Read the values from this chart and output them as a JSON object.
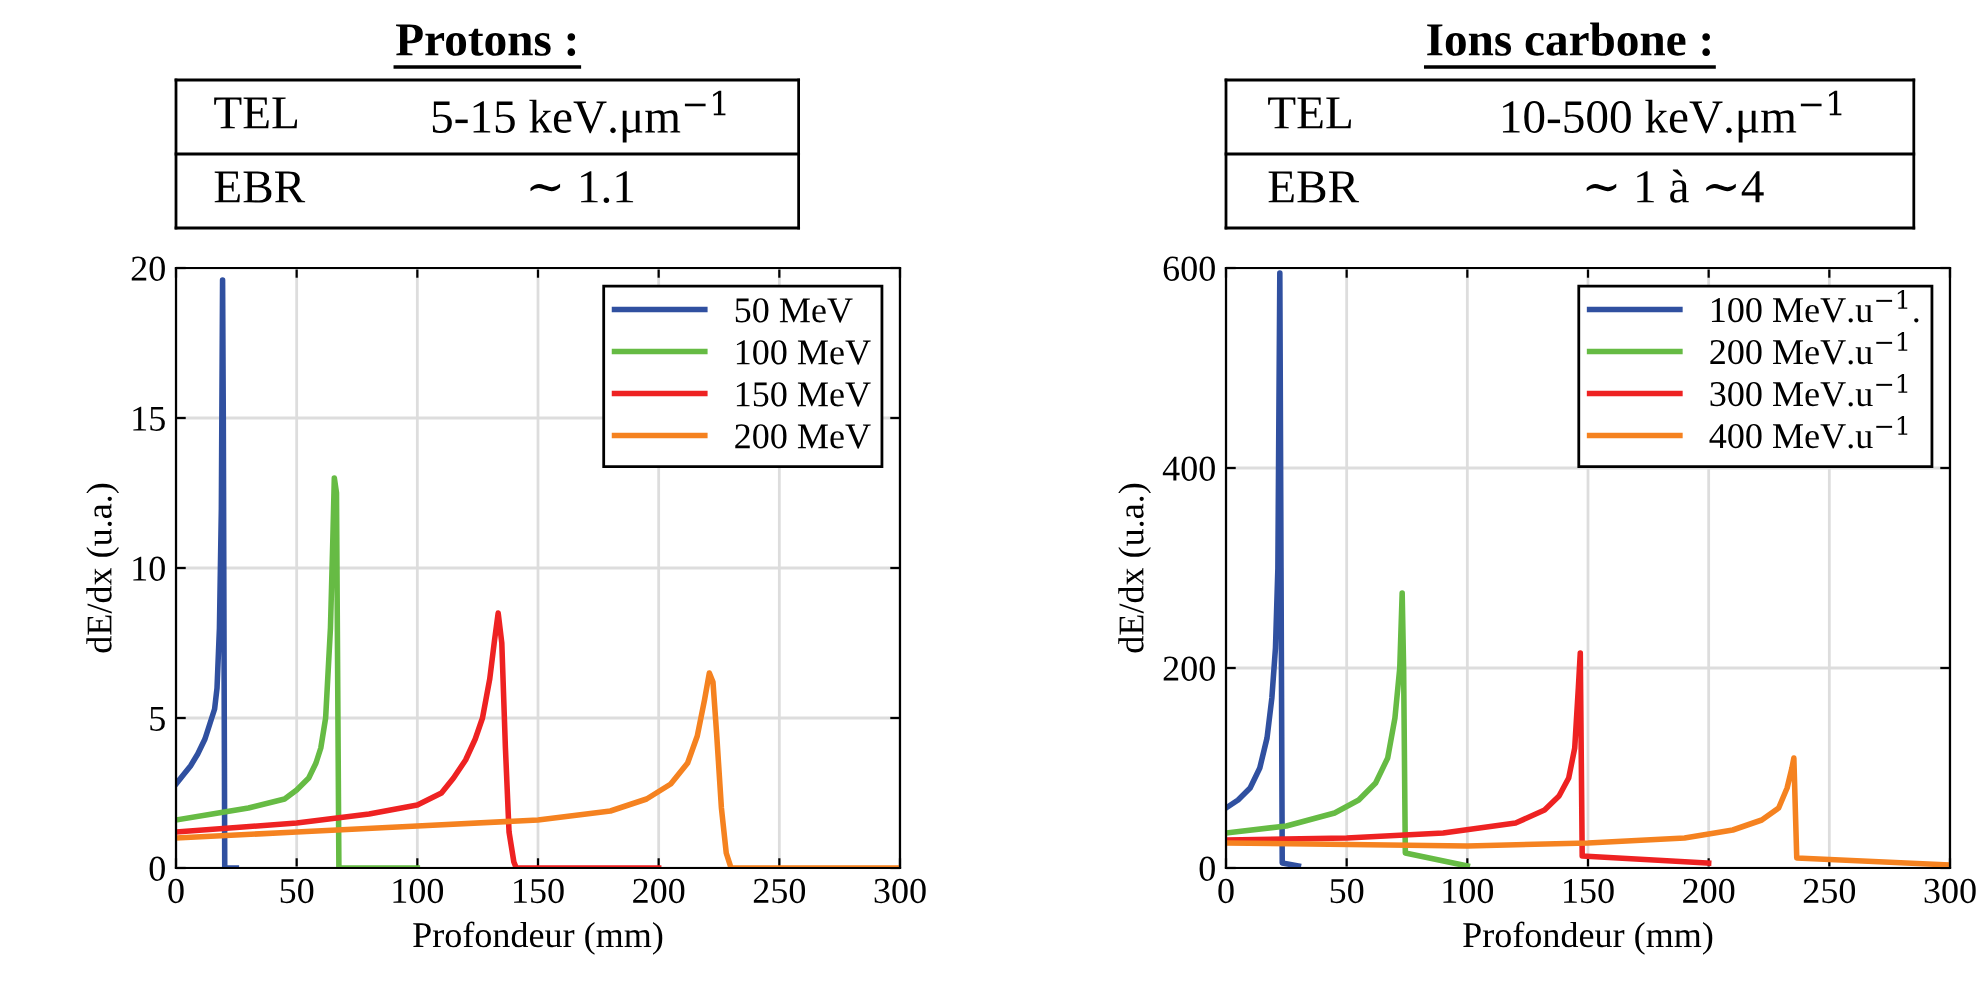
{
  "chart_data": [
    {
      "type": "line",
      "title": "Protons :",
      "xlabel": "Profondeur (mm)",
      "ylabel": "dE/dx (u.a.)",
      "annotations": [
        "TEL",
        "5-15 keV.μm$^{−1}$",
        "EBR",
        "∼ 1.1"
      ],
      "xlim": [
        0,
        300
      ],
      "ylim": [
        0,
        20
      ],
      "xticks": [
        0,
        50,
        100,
        150,
        200,
        250,
        300
      ],
      "yticks": [
        0,
        5,
        10,
        15,
        20
      ],
      "grid": true,
      "legend": "top right",
      "series": [
        {
          "name": "50 MeV",
          "color": "#3050a0",
          "x": [
            0,
            3,
            6,
            9,
            12,
            14,
            16,
            17,
            18,
            18.8,
            19.3,
            19.6,
            20.2,
            21,
            25
          ],
          "values": [
            2.8,
            3.1,
            3.4,
            3.8,
            4.3,
            4.8,
            5.3,
            6.0,
            8,
            12,
            19.6,
            15,
            0,
            0,
            0
          ]
        },
        {
          "name": "100 MeV",
          "color": "#66bb44",
          "x": [
            0,
            15,
            30,
            45,
            50,
            55,
            58,
            60,
            62,
            64,
            65,
            65.6,
            66.5,
            67.5,
            100
          ],
          "values": [
            1.6,
            1.8,
            2.0,
            2.3,
            2.6,
            3.0,
            3.5,
            4.0,
            5,
            8,
            11,
            13,
            12.5,
            0,
            0
          ]
        },
        {
          "name": "150 MeV",
          "color": "#ee2222",
          "x": [
            0,
            25,
            50,
            80,
            100,
            110,
            115,
            120,
            124,
            127,
            130,
            132,
            133.5,
            135,
            136.5,
            138,
            140,
            141,
            200
          ],
          "values": [
            1.2,
            1.35,
            1.5,
            1.8,
            2.1,
            2.5,
            3,
            3.6,
            4.3,
            5,
            6.3,
            7.6,
            8.5,
            7.5,
            4,
            1.2,
            0.2,
            0,
            0
          ]
        },
        {
          "name": "200 MeV",
          "color": "#f58220",
          "x": [
            0,
            50,
            100,
            150,
            180,
            195,
            205,
            212,
            216,
            219,
            221,
            222.5,
            224,
            226,
            228,
            230,
            300
          ],
          "values": [
            1.0,
            1.2,
            1.4,
            1.6,
            1.9,
            2.3,
            2.8,
            3.5,
            4.4,
            5.6,
            6.5,
            6.2,
            4.5,
            2,
            0.5,
            0,
            0
          ]
        }
      ]
    },
    {
      "type": "line",
      "title": "Ions carbone :",
      "xlabel": "Profondeur (mm)",
      "ylabel": "dE/dx (u.a.)",
      "annotations": [
        "TEL",
        "10-500 keV.μm$^{−1}$",
        "EBR",
        "∼ 1 à ∼4"
      ],
      "xlim": [
        0,
        300
      ],
      "ylim": [
        0,
        600
      ],
      "xticks": [
        0,
        50,
        100,
        150,
        200,
        250,
        300
      ],
      "yticks": [
        0,
        200,
        400,
        600
      ],
      "grid": true,
      "legend": "top right",
      "series": [
        {
          "name": "100 MeV.u$^{−1}$.",
          "color": "#3050a0",
          "x": [
            0,
            5,
            10,
            14,
            17,
            19,
            20.5,
            21.5,
            22.3,
            22.8,
            23.3,
            30
          ],
          "values": [
            60,
            68,
            80,
            100,
            130,
            170,
            220,
            300,
            595,
            300,
            5,
            2
          ]
        },
        {
          "name": "200 MeV.u$^{−1}$",
          "color": "#66bb44",
          "x": [
            0,
            25,
            45,
            55,
            62,
            67,
            70,
            72,
            73,
            73.6,
            74.3,
            100
          ],
          "values": [
            35,
            42,
            55,
            68,
            85,
            110,
            150,
            200,
            275,
            200,
            15,
            2
          ]
        },
        {
          "name": "300 MeV.u$^{−1}$",
          "color": "#ee2222",
          "x": [
            0,
            50,
            90,
            120,
            132,
            138,
            142,
            144.5,
            146,
            146.8,
            147.6,
            200
          ],
          "values": [
            28,
            30,
            35,
            45,
            58,
            72,
            90,
            120,
            180,
            215,
            12,
            5
          ]
        },
        {
          "name": "400 MeV.u$^{−1}$",
          "color": "#f58220",
          "x": [
            0,
            100,
            150,
            190,
            210,
            222,
            229,
            232.5,
            234.5,
            235.3,
            236.5,
            300
          ],
          "values": [
            25,
            22,
            25,
            30,
            38,
            48,
            60,
            80,
            100,
            110,
            10,
            3
          ]
        }
      ]
    }
  ]
}
